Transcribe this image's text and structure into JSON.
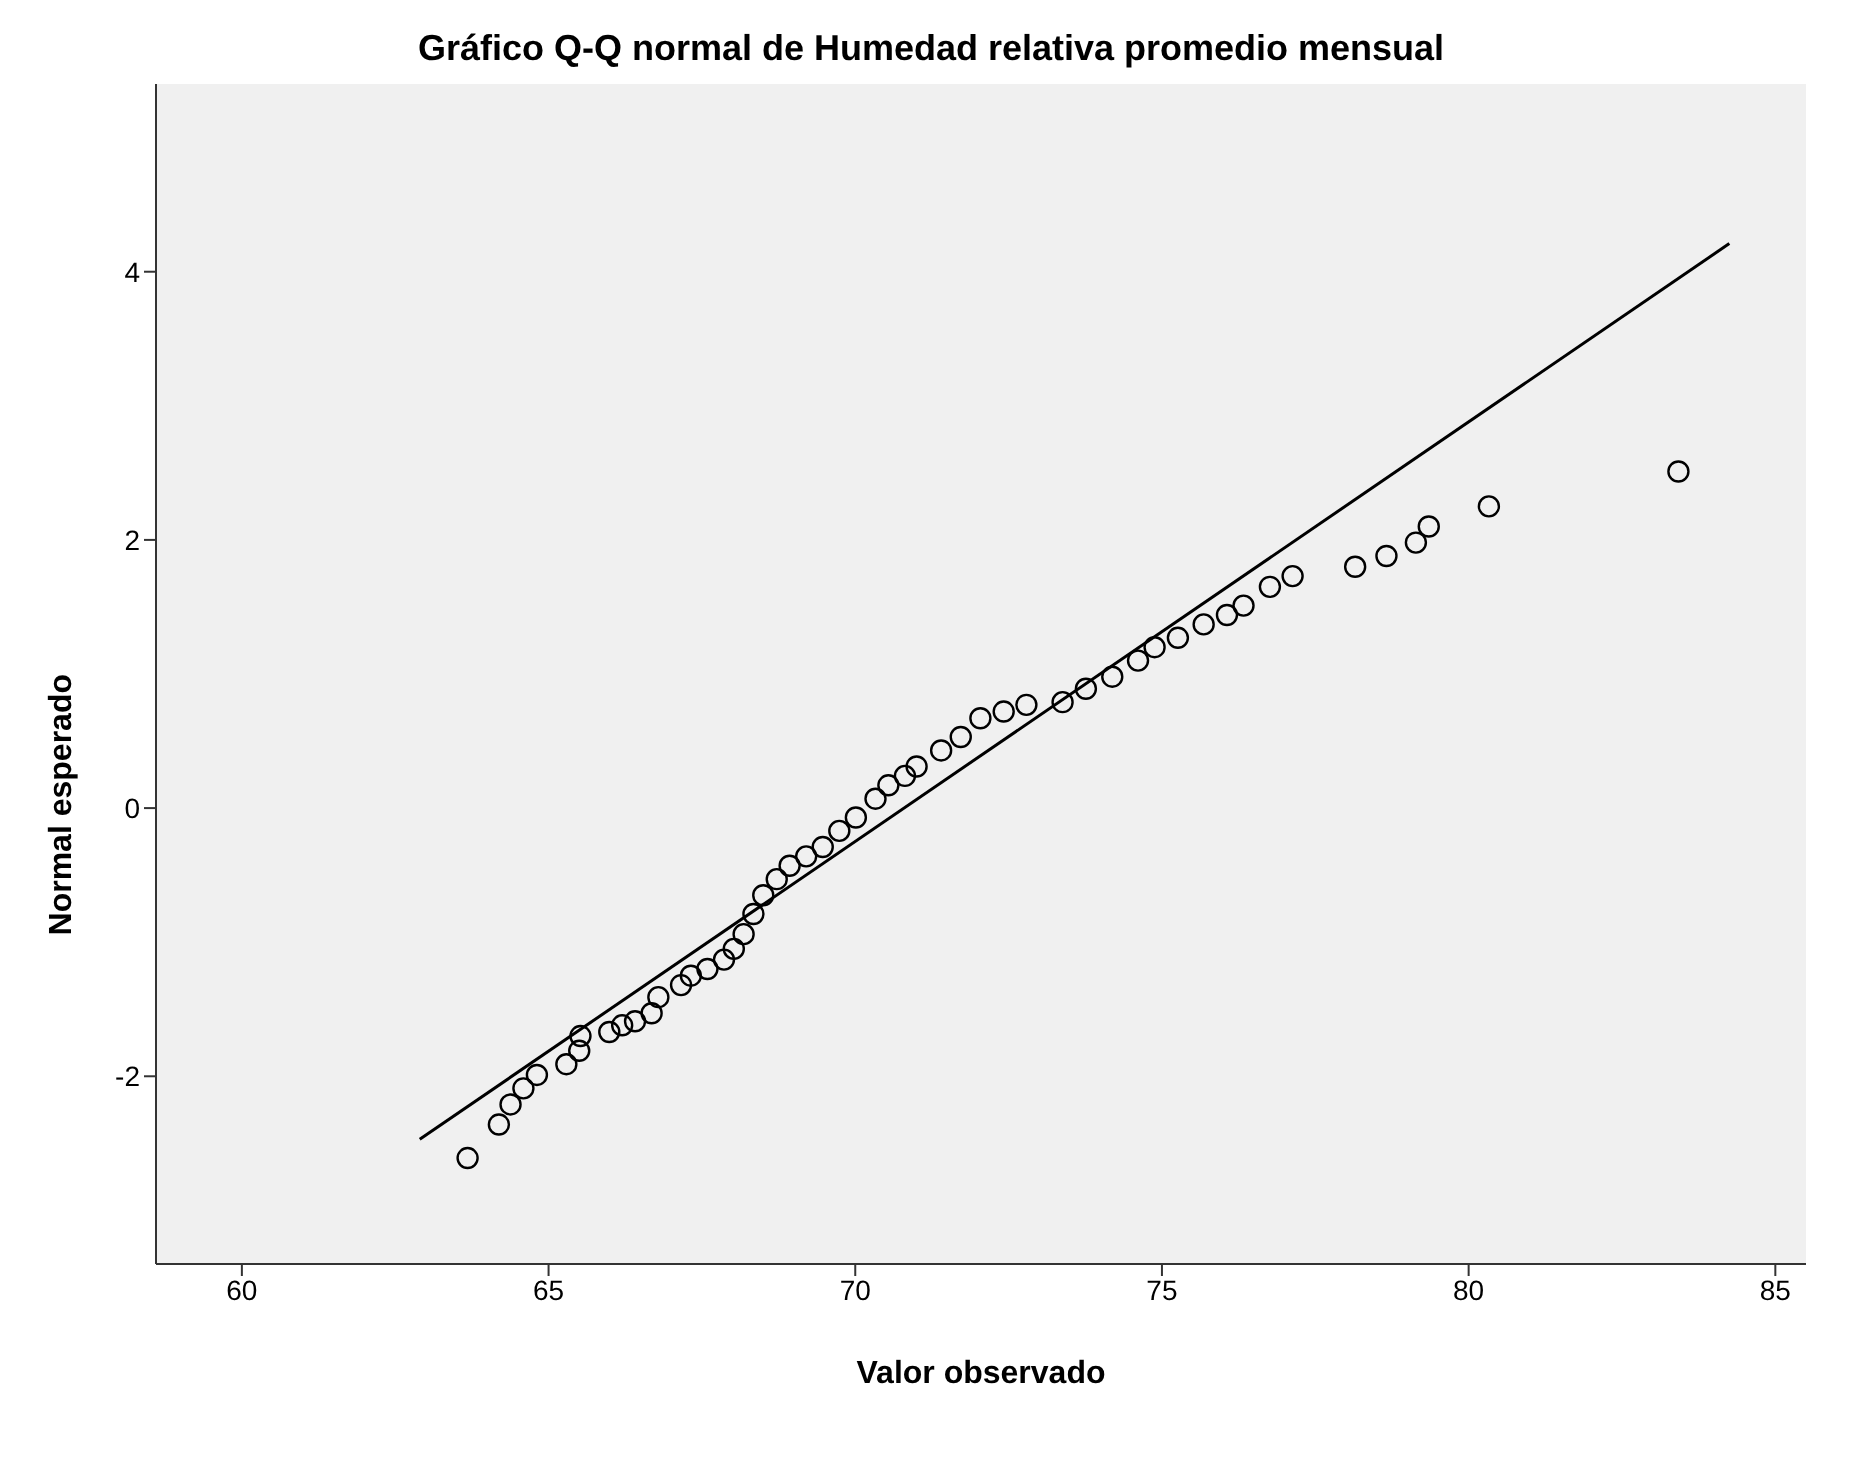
{
  "chart_data": {
    "type": "scatter",
    "title": "Gráfico Q-Q normal de Humedad relativa promedio mensual",
    "xlabel": "Valor observado",
    "ylabel": "Normal esperado",
    "xlim": [
      58.6,
      85.5
    ],
    "xticks": [
      60,
      65,
      70,
      75,
      80,
      85
    ],
    "ylim": [
      -3.4,
      5.4
    ],
    "yticks": [
      -2,
      0,
      2,
      4
    ],
    "grid": false,
    "legend": false,
    "series": [
      {
        "marker": "circle",
        "color": "#000000",
        "x": [
          63.68,
          64.19,
          64.38,
          64.59,
          64.81,
          65.29,
          65.5,
          65.52,
          65.99,
          66.2,
          66.41,
          66.68,
          66.79,
          67.16,
          67.32,
          67.59,
          67.86,
          68.02,
          68.18,
          68.34,
          68.5,
          68.72,
          68.93,
          69.2,
          69.47,
          69.74,
          70.01,
          70.33,
          70.54,
          70.81,
          71.0,
          71.4,
          71.72,
          72.04,
          72.42,
          72.79,
          73.38,
          73.76,
          74.19,
          74.61,
          74.88,
          75.26,
          75.68,
          76.06,
          76.33,
          76.76,
          77.13,
          78.15,
          78.66,
          79.14,
          79.35,
          80.33,
          83.42
        ],
        "values": [
          -2.61,
          -2.36,
          -2.21,
          -2.09,
          -1.99,
          -1.91,
          -1.81,
          -1.7,
          -1.67,
          -1.62,
          -1.59,
          -1.53,
          -1.41,
          -1.32,
          -1.25,
          -1.2,
          -1.13,
          -1.05,
          -0.94,
          -0.79,
          -0.65,
          -0.53,
          -0.43,
          -0.36,
          -0.29,
          -0.17,
          -0.07,
          0.07,
          0.17,
          0.24,
          0.31,
          0.43,
          0.53,
          0.67,
          0.72,
          0.77,
          0.79,
          0.89,
          0.98,
          1.1,
          1.2,
          1.27,
          1.37,
          1.44,
          1.51,
          1.65,
          1.73,
          1.8,
          1.88,
          1.98,
          2.1,
          2.25,
          2.51
        ]
      },
      {
        "type": "line",
        "marker": "none",
        "color": "#000000",
        "x": [
          62.9,
          84.25
        ],
        "values": [
          -2.47,
          4.21
        ]
      }
    ]
  }
}
